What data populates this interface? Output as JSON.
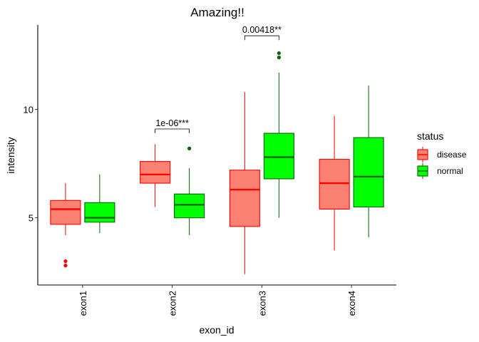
{
  "chart_data": {
    "type": "boxplot",
    "title": "Amazing!!",
    "xlabel": "exon_id",
    "ylabel": "intensity",
    "categories": [
      "exon1",
      "exon2",
      "exon3",
      "exon4"
    ],
    "ylim": [
      1.9,
      13.9
    ],
    "yticks": [
      5,
      10
    ],
    "grid": false,
    "legend": {
      "title": "status",
      "position": "right",
      "entries": [
        "disease",
        "normal"
      ]
    },
    "series": [
      {
        "name": "disease",
        "fill": "#fa8072",
        "stroke": "#ff0000",
        "median_color": "#ff0000",
        "outlier_color": "#ff0000",
        "boxes": [
          {
            "category": "exon1",
            "whisker_low": 4.2,
            "q1": 4.7,
            "median": 5.4,
            "q3": 5.8,
            "whisker_high": 6.6,
            "outliers": [
              3.0,
              2.8
            ]
          },
          {
            "category": "exon2",
            "whisker_low": 5.5,
            "q1": 6.6,
            "median": 7.0,
            "q3": 7.6,
            "whisker_high": 8.4,
            "outliers": []
          },
          {
            "category": "exon3",
            "whisker_low": 2.4,
            "q1": 4.6,
            "median": 6.3,
            "q3": 7.2,
            "whisker_high": 10.8,
            "outliers": []
          },
          {
            "category": "exon4",
            "whisker_low": 3.5,
            "q1": 5.4,
            "median": 6.6,
            "q3": 7.7,
            "whisker_high": 9.7,
            "outliers": []
          }
        ]
      },
      {
        "name": "normal",
        "fill": "#00ff00",
        "stroke": "#006400",
        "median_color": "#006400",
        "outlier_color": "#006400",
        "boxes": [
          {
            "category": "exon1",
            "whisker_low": 4.3,
            "q1": 4.8,
            "median": 5.0,
            "q3": 5.7,
            "whisker_high": 7.0,
            "outliers": []
          },
          {
            "category": "exon2",
            "whisker_low": 4.2,
            "q1": 5.0,
            "median": 5.6,
            "q3": 6.1,
            "whisker_high": 7.3,
            "outliers": [
              8.2
            ]
          },
          {
            "category": "exon3",
            "whisker_low": 5.0,
            "q1": 6.8,
            "median": 7.8,
            "q3": 8.9,
            "whisker_high": 11.7,
            "outliers": [
              12.6,
              12.4
            ]
          },
          {
            "category": "exon4",
            "whisker_low": 4.1,
            "q1": 5.5,
            "median": 6.9,
            "q3": 8.7,
            "whisker_high": 11.1,
            "outliers": []
          }
        ]
      }
    ],
    "annotations": [
      {
        "category": "exon2",
        "label": "1e-06***",
        "y": 9.1
      },
      {
        "category": "exon3",
        "label": "0.00418**",
        "y": 13.4
      }
    ]
  }
}
